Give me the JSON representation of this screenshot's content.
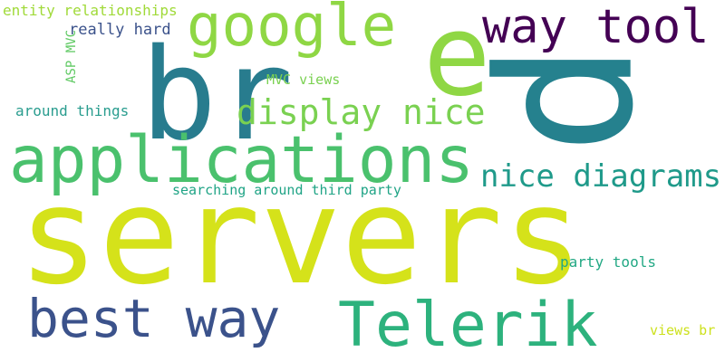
{
  "words": [
    {
      "text": "servers",
      "color": "#d5e21a"
    },
    {
      "text": "p",
      "color": "#25818e"
    },
    {
      "text": "br",
      "color": "#287c8e"
    },
    {
      "text": "applications",
      "color": "#4ac16d"
    },
    {
      "text": "e",
      "color": "#8fd744"
    },
    {
      "text": "google",
      "color": "#8fd744"
    },
    {
      "text": "way tool",
      "color": "#440154"
    },
    {
      "text": "Telerik",
      "color": "#2db27d"
    },
    {
      "text": "best way",
      "color": "#3b528b"
    },
    {
      "text": "display nice",
      "color": "#7ad151"
    },
    {
      "text": "nice diagrams",
      "color": "#1f9a8a"
    },
    {
      "text": "entity relationships",
      "color": "#a0da39"
    },
    {
      "text": "ASP MVC",
      "color": "#5ec962"
    },
    {
      "text": "really hard",
      "color": "#3b528b"
    },
    {
      "text": "MVC views",
      "color": "#7ad151"
    },
    {
      "text": "around things",
      "color": "#2a9d8f"
    },
    {
      "text": "searching around third party",
      "color": "#20a486"
    },
    {
      "text": "party tools",
      "color": "#22a884"
    },
    {
      "text": "views br",
      "color": "#cde11d"
    }
  ]
}
